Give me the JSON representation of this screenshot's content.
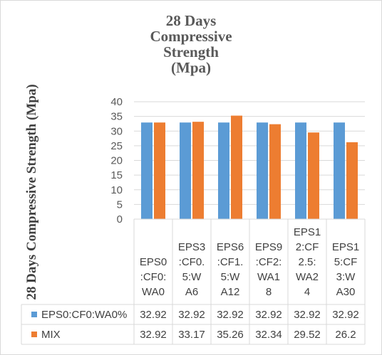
{
  "chart_data": {
    "type": "bar",
    "title": "28 Days Compressive Strength (Mpa)",
    "title_lines": [
      "28 Days",
      "Compressive",
      "Strength",
      "(Mpa)"
    ],
    "ylabel": "28 Days Compressive Strength  (Mpa)",
    "xlabel": "",
    "ylim": [
      0,
      40
    ],
    "yticks": [
      0,
      5,
      10,
      15,
      20,
      25,
      30,
      35,
      40
    ],
    "grid": true,
    "legend": "data-table",
    "categories": [
      "EPS0:CF0:WA0",
      "EPS3:CF0.5:WA6",
      "EPS6:CF1.5:WA12",
      "EPS9:CF2:WA18",
      "EPS12:CF2.5:WA24",
      "EPS15:CF3:WA30"
    ],
    "category_lines": [
      [
        "EPS0",
        ":CF0:",
        "WA0"
      ],
      [
        "EPS3",
        ":CF0.",
        "5:W",
        "A6"
      ],
      [
        "EPS6",
        ":CF1.",
        "5:W",
        "A12"
      ],
      [
        "EPS9",
        ":CF2:",
        "WA1",
        "8"
      ],
      [
        "EPS1",
        "2:CF",
        "2.5:",
        "WA2",
        "4"
      ],
      [
        "EPS1",
        "5:CF",
        "3:W",
        "A30"
      ]
    ],
    "series": [
      {
        "name": "EPS0:CF0:WA0%",
        "color": "#5b9bd5",
        "values": [
          32.92,
          32.92,
          32.92,
          32.92,
          32.92,
          32.92
        ],
        "labels": [
          "32.92",
          "32.92",
          "32.92",
          "32.92",
          "32.92",
          "32.92"
        ]
      },
      {
        "name": "MIX",
        "color": "#ed7d31",
        "values": [
          32.92,
          33.17,
          35.26,
          32.34,
          29.52,
          26.2
        ],
        "labels": [
          "32.92",
          "33.17",
          "35.26",
          "32.34",
          "29.52",
          "26.2"
        ]
      }
    ]
  }
}
